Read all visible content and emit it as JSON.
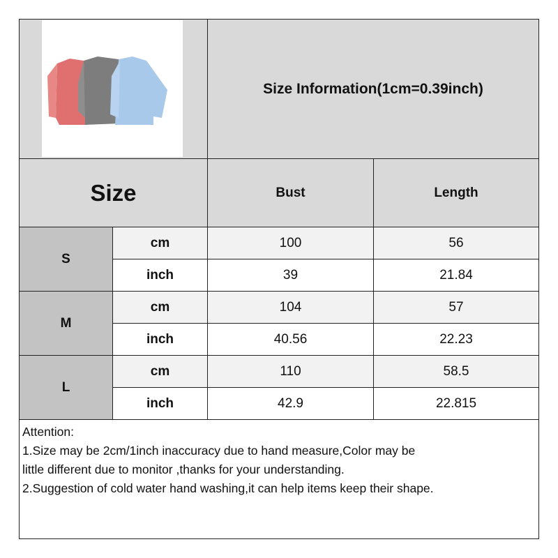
{
  "title": "Size Information(1cm=0.39inch)",
  "header": {
    "size": "Size",
    "bust": "Bust",
    "length": "Length"
  },
  "rows": [
    {
      "size": "S",
      "cm": {
        "unit": "cm",
        "bust": "100",
        "length": "56"
      },
      "inch": {
        "unit": "inch",
        "bust": "39",
        "length": "21.84"
      }
    },
    {
      "size": "M",
      "cm": {
        "unit": "cm",
        "bust": "104",
        "length": "57"
      },
      "inch": {
        "unit": "inch",
        "bust": "40.56",
        "length": "22.23"
      }
    },
    {
      "size": "L",
      "cm": {
        "unit": "cm",
        "bust": "110",
        "length": "58.5"
      },
      "inch": {
        "unit": "inch",
        "bust": "42.9",
        "length": "22.815"
      }
    }
  ],
  "attention": {
    "heading": "Attention:",
    "line1": "1.Size may be 2cm/1inch inaccuracy due to hand measure,Color may be",
    "line2": "little different due to monitor ,thanks for your understanding.",
    "line3": "2.Suggestion of cold water hand washing,it can help items keep their shape."
  },
  "product_colors": [
    "#e0706f",
    "#808080",
    "#a9c9ea"
  ]
}
